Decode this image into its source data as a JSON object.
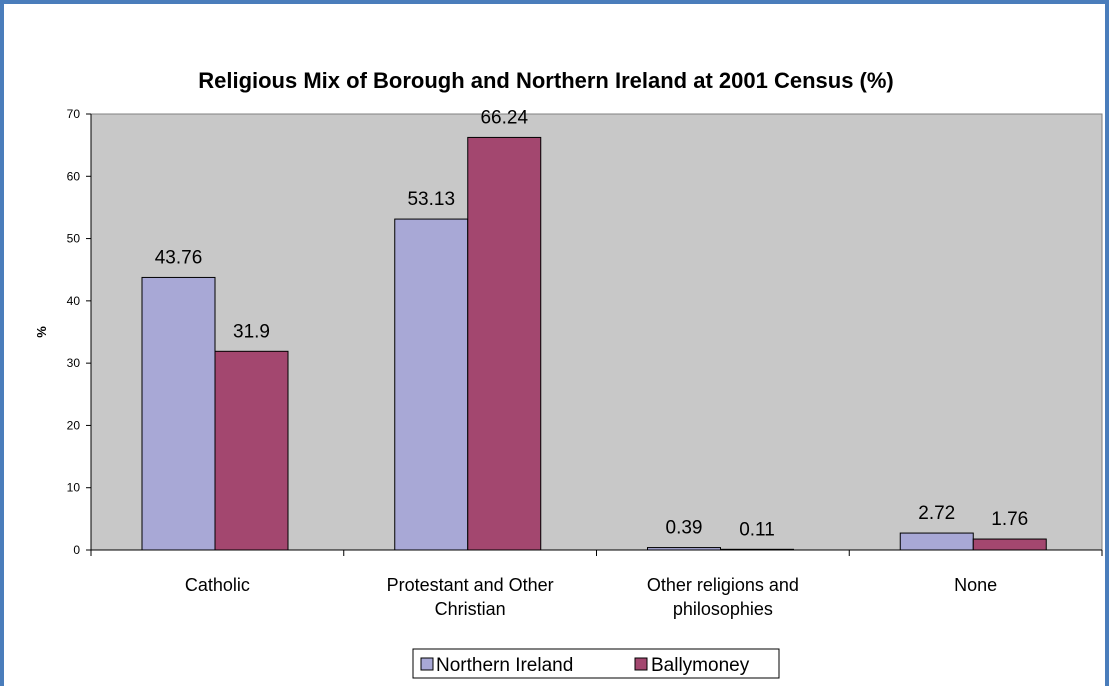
{
  "chart_data": {
    "type": "bar",
    "title": "Religious Mix of Borough and Northern Ireland at 2001 Census (%)",
    "xlabel": "",
    "ylabel": "%",
    "ylim": [
      0,
      70
    ],
    "yticks": [
      0,
      10,
      20,
      30,
      40,
      50,
      60,
      70
    ],
    "grid": false,
    "legend_position": "bottom",
    "categories": [
      [
        "Catholic"
      ],
      [
        "Protestant and Other",
        "Christian"
      ],
      [
        "Other religions and",
        "philosophies"
      ],
      [
        "None"
      ]
    ],
    "series": [
      {
        "name": "Northern Ireland",
        "color": "#a8a8d6",
        "values": [
          43.76,
          53.13,
          0.39,
          2.72
        ],
        "labels": [
          "43.76",
          "53.13",
          "0.39",
          "2.72"
        ]
      },
      {
        "name": "Ballymoney",
        "color": "#a3476f",
        "values": [
          31.9,
          66.24,
          0.11,
          1.76
        ],
        "labels": [
          "31.9",
          "66.24",
          "0.11",
          "1.76"
        ]
      }
    ],
    "plot_background": "#c8c8c8",
    "frame_color": "#4a7dbb"
  }
}
